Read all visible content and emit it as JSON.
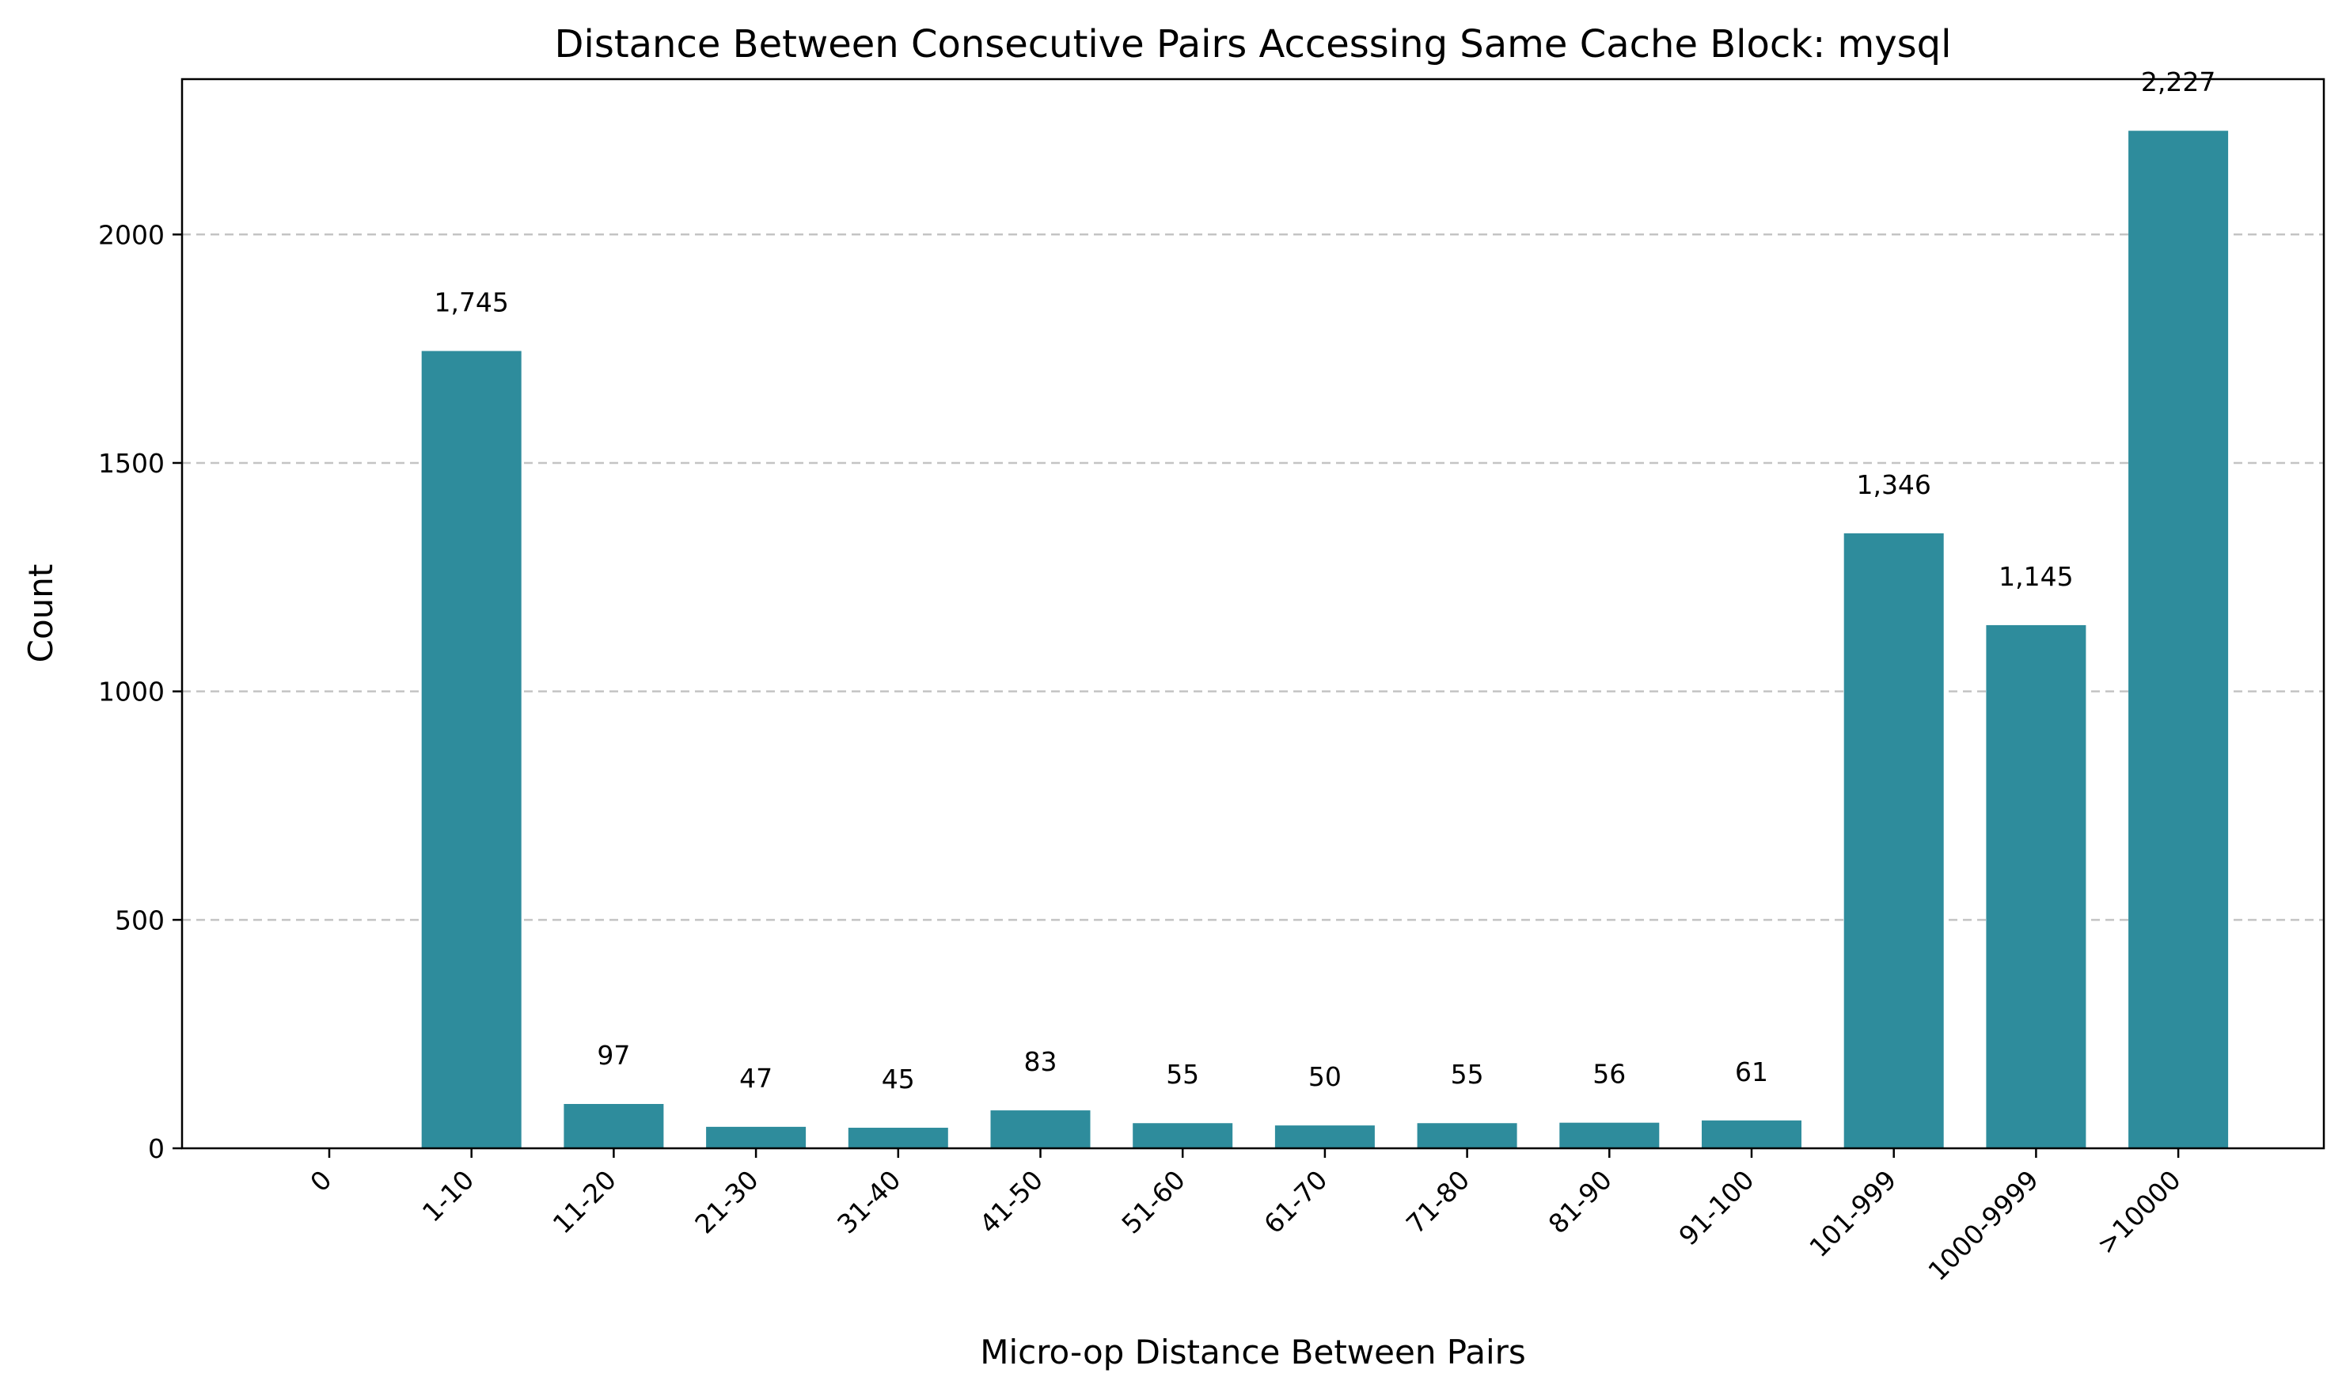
{
  "chart_data": {
    "type": "bar",
    "title": "Distance Between Consecutive Pairs Accessing Same Cache Block: mysql",
    "xlabel": "Micro-op Distance Between Pairs",
    "ylabel": "Count",
    "categories": [
      "0",
      "1-10",
      "11-20",
      "21-30",
      "31-40",
      "41-50",
      "51-60",
      "61-70",
      "71-80",
      "81-90",
      "91-100",
      "101-999",
      "1000-9999",
      ">10000"
    ],
    "values": [
      0,
      1745,
      97,
      47,
      45,
      83,
      55,
      50,
      55,
      56,
      61,
      1346,
      1145,
      2227
    ],
    "value_labels": [
      "",
      "1,745",
      "97",
      "47",
      "45",
      "83",
      "55",
      "50",
      "55",
      "56",
      "61",
      "1,346",
      "1,145",
      "2,227"
    ],
    "yticks": [
      0,
      500,
      1000,
      1500,
      2000
    ],
    "ytick_labels": [
      "0",
      "500",
      "1000",
      "1500",
      "2000"
    ],
    "ylim": [
      0,
      2340
    ],
    "grid": "y-dashed",
    "bar_color": "#2e8c9c"
  }
}
